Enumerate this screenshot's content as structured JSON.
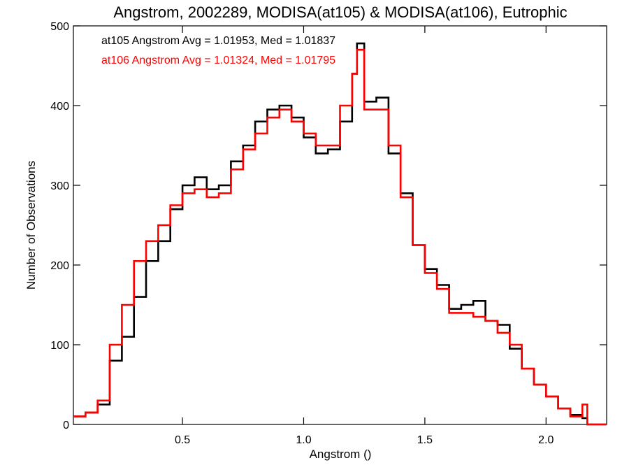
{
  "chart_data": {
    "type": "line",
    "title": "Angstrom, 2002289, MODISA(at105) & MODISA(at106), Eutrophic",
    "xlabel": "Angstrom ()",
    "ylabel": "Number of Observations",
    "xlim": [
      0.05,
      2.25
    ],
    "ylim": [
      0,
      500
    ],
    "x_ticks": [
      0.5,
      1.0,
      1.5,
      2.0
    ],
    "x_tick_labels": [
      "0.5",
      "1.0",
      "1.5",
      "2.0"
    ],
    "y_ticks": [
      0,
      100,
      200,
      300,
      400,
      500
    ],
    "y_tick_labels": [
      "0",
      "100",
      "200",
      "300",
      "400",
      "500"
    ],
    "grid": false,
    "legend_position": "top-left",
    "series": [
      {
        "name": "at105",
        "color": "#000000",
        "annotation": "at105 Angstrom Avg = 1.01953, Med = 1.01837",
        "x": [
          0.05,
          0.1,
          0.15,
          0.2,
          0.25,
          0.3,
          0.35,
          0.4,
          0.45,
          0.5,
          0.55,
          0.6,
          0.65,
          0.7,
          0.75,
          0.8,
          0.85,
          0.9,
          0.95,
          1.0,
          1.05,
          1.1,
          1.15,
          1.2,
          1.22,
          1.25,
          1.3,
          1.35,
          1.4,
          1.45,
          1.5,
          1.55,
          1.6,
          1.65,
          1.7,
          1.75,
          1.8,
          1.85,
          1.9,
          1.95,
          2.0,
          2.05,
          2.1,
          2.15,
          2.17,
          2.25
        ],
        "y": [
          10,
          15,
          25,
          80,
          110,
          160,
          205,
          230,
          270,
          300,
          310,
          295,
          300,
          330,
          350,
          380,
          395,
          400,
          385,
          360,
          340,
          345,
          380,
          440,
          478,
          405,
          410,
          340,
          290,
          225,
          195,
          175,
          145,
          150,
          155,
          130,
          125,
          95,
          70,
          50,
          35,
          20,
          12,
          8,
          0,
          0
        ]
      },
      {
        "name": "at106",
        "color": "#ff0000",
        "annotation": "at106 Angstrom Avg = 1.01324, Med = 1.01795",
        "x": [
          0.05,
          0.1,
          0.15,
          0.2,
          0.25,
          0.3,
          0.35,
          0.4,
          0.45,
          0.5,
          0.55,
          0.6,
          0.65,
          0.7,
          0.75,
          0.8,
          0.85,
          0.9,
          0.95,
          1.0,
          1.05,
          1.1,
          1.15,
          1.2,
          1.22,
          1.25,
          1.3,
          1.35,
          1.4,
          1.45,
          1.5,
          1.55,
          1.6,
          1.65,
          1.7,
          1.75,
          1.8,
          1.85,
          1.9,
          1.95,
          2.0,
          2.05,
          2.1,
          2.15,
          2.17,
          2.25
        ],
        "y": [
          10,
          15,
          30,
          100,
          150,
          205,
          230,
          250,
          275,
          290,
          295,
          285,
          290,
          320,
          345,
          365,
          385,
          395,
          380,
          365,
          350,
          350,
          400,
          440,
          470,
          395,
          395,
          350,
          285,
          225,
          190,
          170,
          140,
          140,
          135,
          130,
          115,
          100,
          70,
          50,
          35,
          20,
          10,
          25,
          0,
          0
        ]
      }
    ]
  }
}
